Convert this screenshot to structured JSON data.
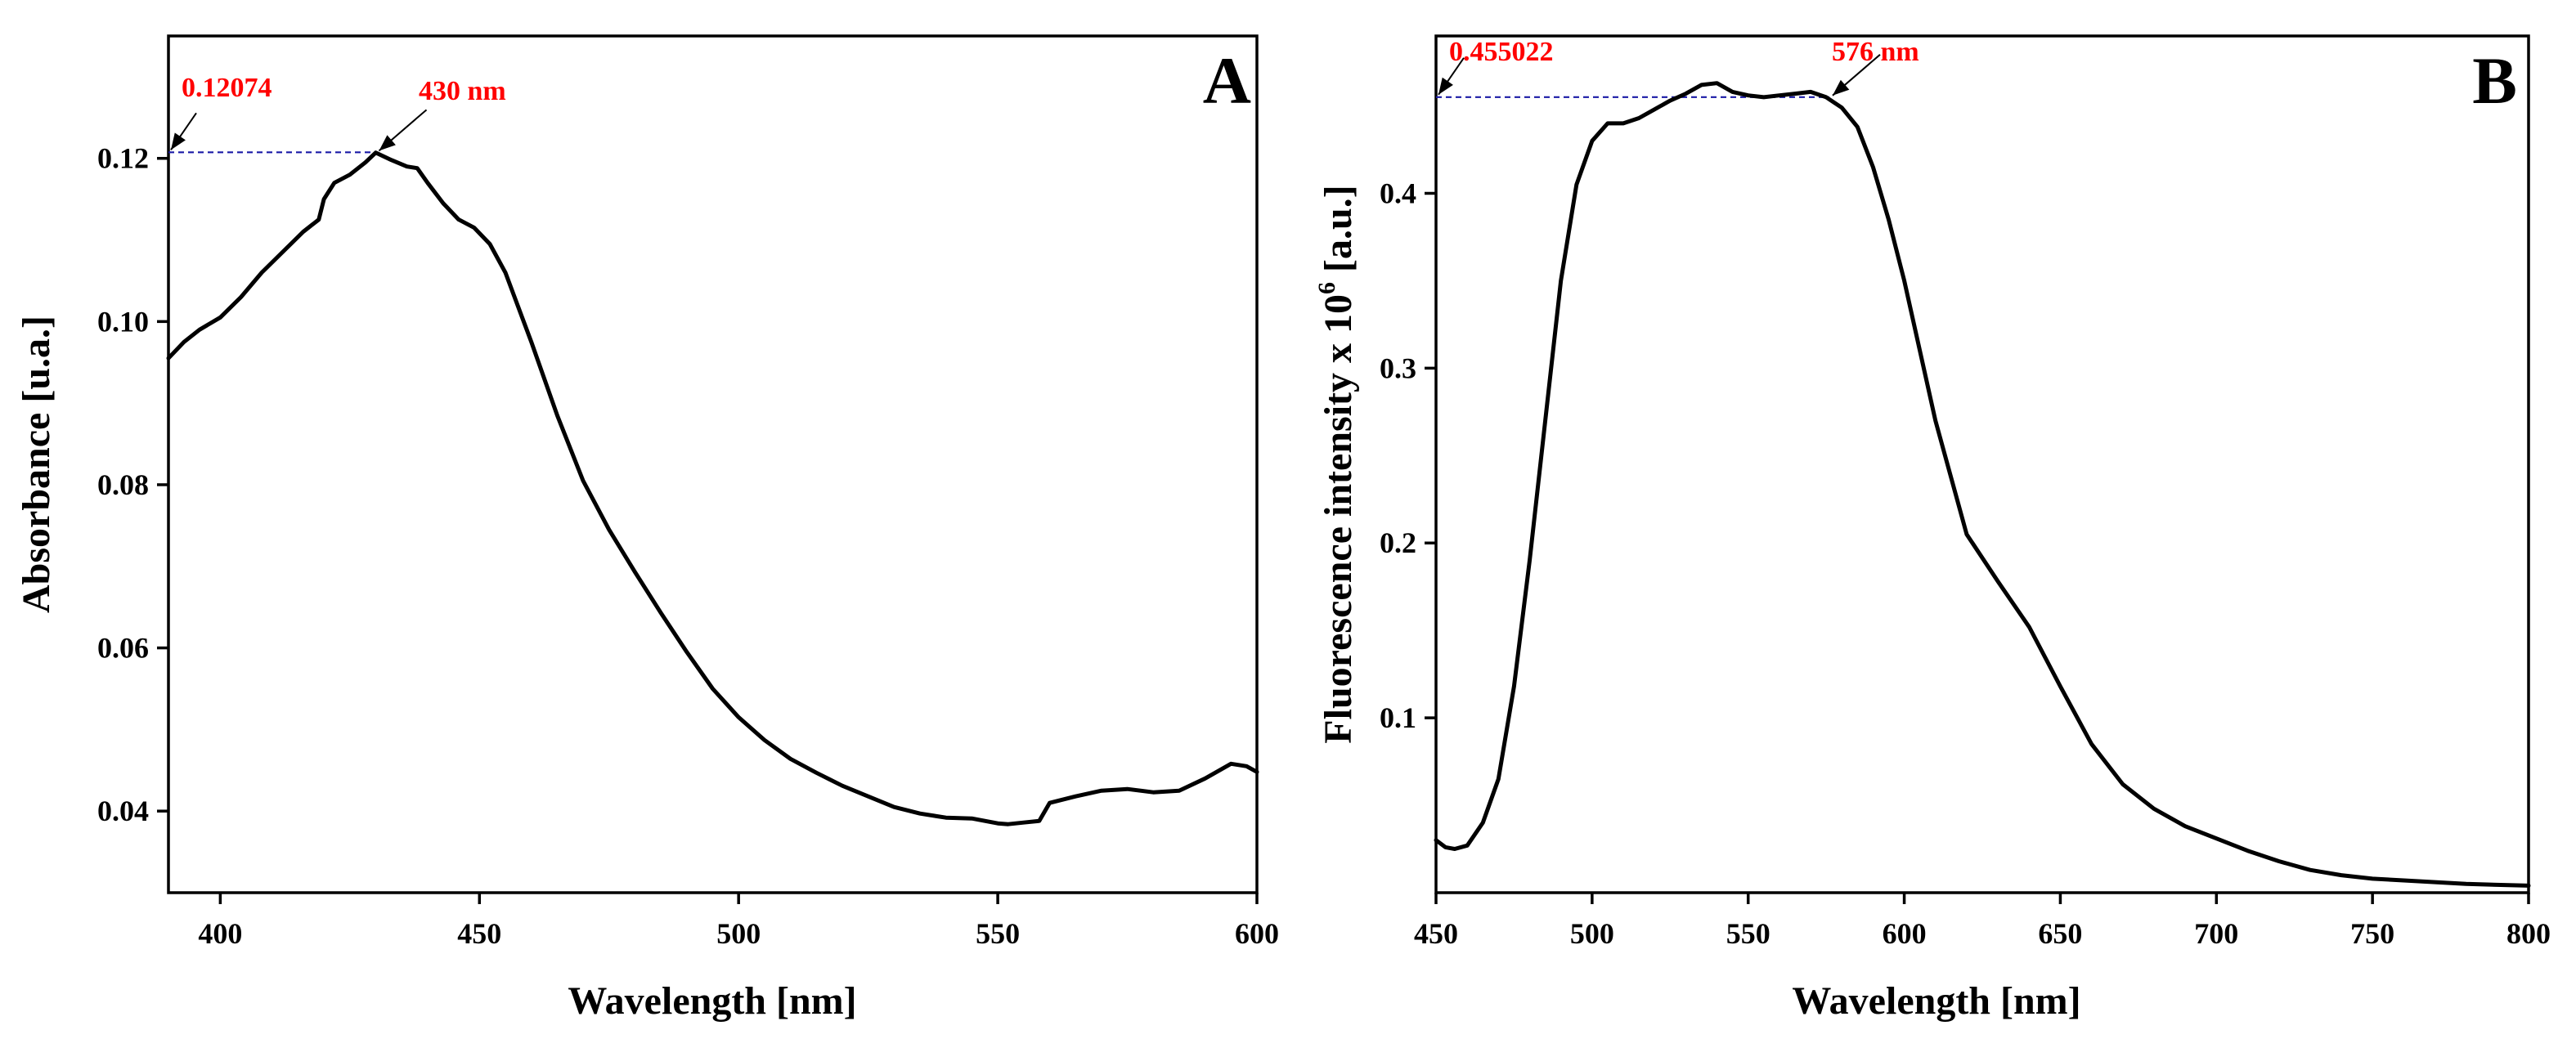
{
  "chart_data": [
    {
      "type": "line",
      "panel": "A",
      "title": "",
      "xlabel": "Wavelength [nm]",
      "ylabel": "Absorbance [u.a.]",
      "xlim": [
        390,
        600
      ],
      "ylim": [
        0.03,
        0.135
      ],
      "xticks": [
        400,
        450,
        500,
        550,
        600
      ],
      "yticks": [
        0.04,
        0.06,
        0.08,
        0.1,
        0.12
      ],
      "xtick_labels": [
        "400",
        "450",
        "500",
        "550",
        "600"
      ],
      "ytick_labels": [
        "0.04",
        "0.06",
        "0.08",
        "0.10",
        "0.12"
      ],
      "peak": {
        "x": 430,
        "y": 0.12074,
        "x_label": "430 nm",
        "y_label": "0.12074"
      },
      "series": [
        {
          "name": "Absorbance",
          "x": [
            390,
            393,
            396,
            400,
            404,
            408,
            412,
            416,
            419,
            420,
            422,
            425,
            428,
            430,
            433,
            436,
            438,
            440,
            443,
            446,
            449,
            452,
            455,
            460,
            465,
            470,
            475,
            480,
            485,
            490,
            495,
            500,
            505,
            510,
            515,
            520,
            525,
            530,
            535,
            540,
            545,
            550,
            552,
            555,
            558,
            560,
            565,
            570,
            575,
            580,
            585,
            590,
            595,
            598,
            600
          ],
          "values": [
            0.0955,
            0.0975,
            0.099,
            0.1005,
            0.103,
            0.106,
            0.1085,
            0.111,
            0.1125,
            0.115,
            0.117,
            0.118,
            0.1195,
            0.1207,
            0.1198,
            0.119,
            0.1188,
            0.117,
            0.1145,
            0.1125,
            0.1115,
            0.1095,
            0.106,
            0.0975,
            0.0885,
            0.0805,
            0.0745,
            0.0693,
            0.0643,
            0.0595,
            0.055,
            0.0515,
            0.0487,
            0.0464,
            0.0447,
            0.0431,
            0.0418,
            0.0405,
            0.0397,
            0.0392,
            0.0391,
            0.0385,
            0.0384,
            0.0386,
            0.0388,
            0.041,
            0.0418,
            0.0425,
            0.0427,
            0.0423,
            0.0425,
            0.044,
            0.0458,
            0.0455,
            0.0448
          ]
        }
      ]
    },
    {
      "type": "line",
      "panel": "B",
      "title": "",
      "xlabel": "Wavelength [nm]",
      "ylabel_main": "Fluorescence intensity x 10",
      "ylabel_sup": "6",
      "ylabel_tail": " [a.u.]",
      "xlim": [
        450,
        800
      ],
      "ylim": [
        0.0,
        0.49
      ],
      "xticks": [
        450,
        500,
        550,
        600,
        650,
        700,
        750,
        800
      ],
      "yticks": [
        0.1,
        0.2,
        0.3,
        0.4
      ],
      "xtick_labels": [
        "450",
        "500",
        "550",
        "600",
        "650",
        "700",
        "750",
        "800"
      ],
      "ytick_labels": [
        "0.1",
        "0.2",
        "0.3",
        "0.4"
      ],
      "peak": {
        "x": 576,
        "y": 0.455022,
        "x_label": "576 nm",
        "y_label": "0.455022"
      },
      "series": [
        {
          "name": "Fluorescence",
          "x": [
            450,
            453,
            456,
            460,
            465,
            470,
            475,
            480,
            485,
            490,
            495,
            500,
            505,
            510,
            515,
            520,
            525,
            530,
            535,
            540,
            545,
            550,
            555,
            560,
            565,
            570,
            575,
            580,
            585,
            590,
            595,
            600,
            610,
            620,
            630,
            640,
            650,
            660,
            670,
            680,
            690,
            700,
            710,
            720,
            730,
            740,
            750,
            760,
            780,
            800
          ],
          "values": [
            0.03,
            0.026,
            0.025,
            0.027,
            0.04,
            0.065,
            0.118,
            0.19,
            0.27,
            0.35,
            0.405,
            0.43,
            0.44,
            0.44,
            0.443,
            0.448,
            0.453,
            0.457,
            0.462,
            0.463,
            0.458,
            0.456,
            0.455,
            0.456,
            0.457,
            0.458,
            0.455,
            0.449,
            0.438,
            0.415,
            0.385,
            0.35,
            0.27,
            0.205,
            0.178,
            0.152,
            0.118,
            0.085,
            0.062,
            0.048,
            0.038,
            0.031,
            0.024,
            0.018,
            0.013,
            0.01,
            0.008,
            0.007,
            0.005,
            0.004
          ]
        }
      ]
    }
  ]
}
